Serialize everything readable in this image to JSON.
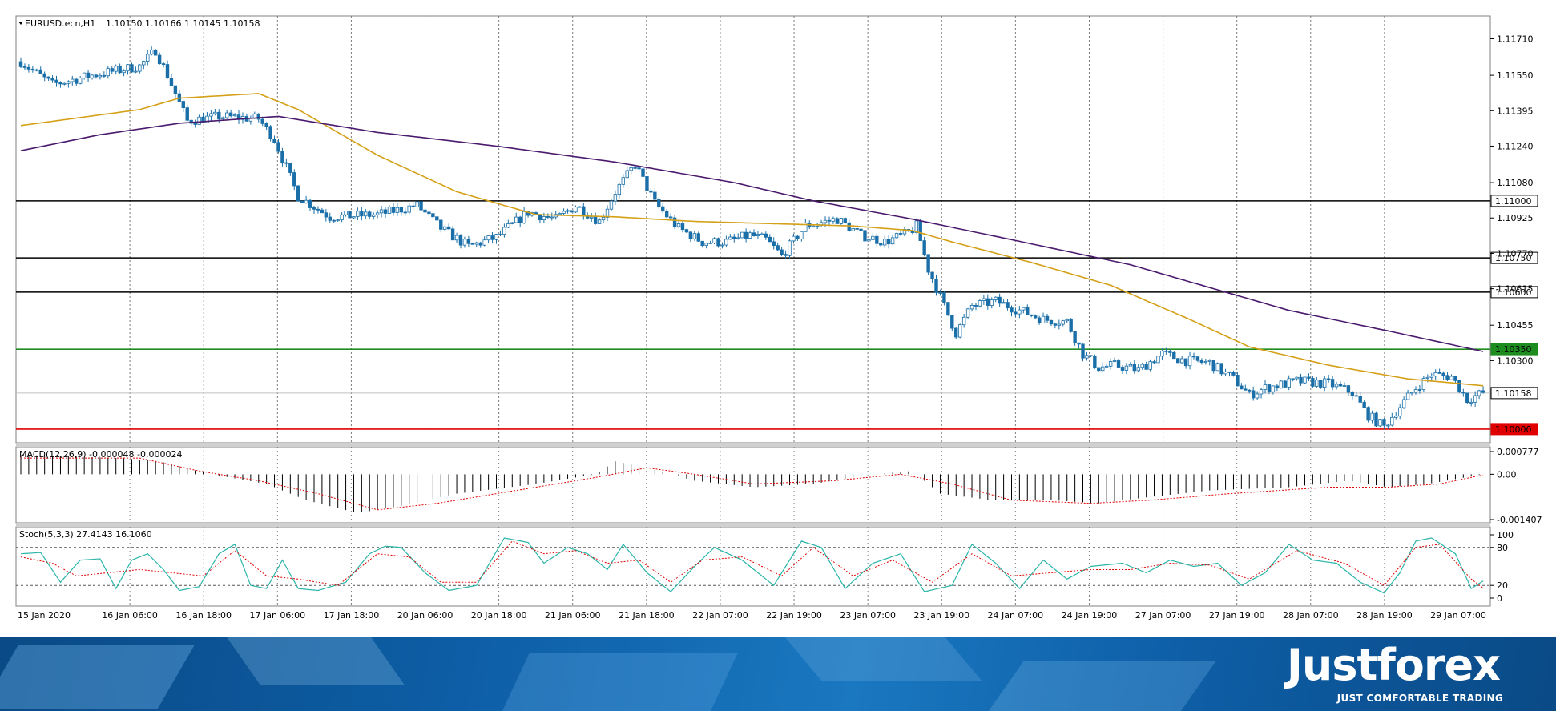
{
  "chart_data": {
    "type": "candlestick",
    "header": {
      "symbol_label": "EURUSD.ecn,H1",
      "ohlc_text": "1.10150 1.10166 1.10145 1.10158"
    },
    "price_axis": {
      "ylim": [
        1.0994,
        1.1181
      ],
      "tick_labels": [
        "1.11710",
        "1.11550",
        "1.11395",
        "1.11240",
        "1.11080",
        "1.10925",
        "1.10770",
        "1.10615",
        "1.10455",
        "1.10300"
      ]
    },
    "x_tick_labels": [
      "15 Jan 2020",
      "16 Jan 06:00",
      "16 Jan 18:00",
      "17 Jan 06:00",
      "17 Jan 18:00",
      "20 Jan 06:00",
      "20 Jan 18:00",
      "21 Jan 06:00",
      "21 Jan 18:00",
      "22 Jan 07:00",
      "22 Jan 19:00",
      "23 Jan 07:00",
      "23 Jan 19:00",
      "24 Jan 07:00",
      "24 Jan 19:00",
      "27 Jan 07:00",
      "27 Jan 19:00",
      "28 Jan 07:00",
      "28 Jan 19:00",
      "29 Jan 07:00"
    ],
    "horizontal_levels": [
      {
        "value": 1.11,
        "label": "1.11000",
        "color": "#000000"
      },
      {
        "value": 1.1075,
        "label": "1.10750",
        "color": "#000000"
      },
      {
        "value": 1.106,
        "label": "1.10600",
        "color": "#000000"
      },
      {
        "value": 1.1035,
        "label": "1.10350",
        "color": "#1e8c1e"
      },
      {
        "value": 1.10158,
        "label": "1.10158",
        "color": "#c0c0c0"
      },
      {
        "value": 1.1,
        "label": "1.10000",
        "color": "#e00000"
      }
    ],
    "price_keypoints": [
      [
        0,
        1.1161
      ],
      [
        8,
        1.1151
      ],
      [
        18,
        1.1155
      ],
      [
        30,
        1.1159
      ],
      [
        34,
        1.1166
      ],
      [
        37,
        1.1155
      ],
      [
        42,
        1.1135
      ],
      [
        50,
        1.1137
      ],
      [
        60,
        1.1136
      ],
      [
        64,
        1.1127
      ],
      [
        70,
        1.1102
      ],
      [
        78,
        1.1093
      ],
      [
        90,
        1.1094
      ],
      [
        100,
        1.1098
      ],
      [
        106,
        1.1088
      ],
      [
        113,
        1.108
      ],
      [
        120,
        1.1084
      ],
      [
        128,
        1.1095
      ],
      [
        135,
        1.1092
      ],
      [
        140,
        1.1098
      ],
      [
        146,
        1.1091
      ],
      [
        150,
        1.1104
      ],
      [
        155,
        1.1116
      ],
      [
        160,
        1.1099
      ],
      [
        166,
        1.1088
      ],
      [
        172,
        1.1082
      ],
      [
        178,
        1.1082
      ],
      [
        184,
        1.1085
      ],
      [
        188,
        1.1083
      ],
      [
        192,
        1.1076
      ],
      [
        198,
        1.1089
      ],
      [
        206,
        1.1092
      ],
      [
        212,
        1.1085
      ],
      [
        218,
        1.1082
      ],
      [
        224,
        1.1086
      ],
      [
        226,
        1.1089
      ],
      [
        229,
        1.107
      ],
      [
        232,
        1.1058
      ],
      [
        236,
        1.1042
      ],
      [
        240,
        1.1054
      ],
      [
        246,
        1.1056
      ],
      [
        252,
        1.1052
      ],
      [
        258,
        1.1048
      ],
      [
        264,
        1.1047
      ],
      [
        268,
        1.1033
      ],
      [
        272,
        1.1027
      ],
      [
        276,
        1.1028
      ],
      [
        282,
        1.1026
      ],
      [
        288,
        1.1033
      ],
      [
        294,
        1.103
      ],
      [
        300,
        1.1029
      ],
      [
        306,
        1.1022
      ],
      [
        310,
        1.1015
      ],
      [
        314,
        1.1018
      ],
      [
        322,
        1.1021
      ],
      [
        330,
        1.102
      ],
      [
        336,
        1.1016
      ],
      [
        340,
        1.1006
      ],
      [
        344,
        1.1001
      ],
      [
        348,
        1.101
      ],
      [
        352,
        1.1018
      ],
      [
        356,
        1.1024
      ],
      [
        361,
        1.1023
      ],
      [
        365,
        1.1013
      ],
      [
        369,
        1.1016
      ]
    ],
    "moving_averages": [
      {
        "color": "#d4a017",
        "keypoints": [
          [
            0,
            1.1133
          ],
          [
            30,
            1.114
          ],
          [
            40,
            1.1145
          ],
          [
            60,
            1.1147
          ],
          [
            70,
            1.114
          ],
          [
            90,
            1.112
          ],
          [
            110,
            1.1104
          ],
          [
            130,
            1.1094
          ],
          [
            150,
            1.1093
          ],
          [
            170,
            1.1091
          ],
          [
            190,
            1.109
          ],
          [
            210,
            1.1089
          ],
          [
            225,
            1.1087
          ],
          [
            235,
            1.1082
          ],
          [
            255,
            1.1073
          ],
          [
            275,
            1.1063
          ],
          [
            295,
            1.1048
          ],
          [
            310,
            1.1036
          ],
          [
            330,
            1.1028
          ],
          [
            350,
            1.1022
          ],
          [
            369,
            1.1019
          ]
        ]
      },
      {
        "color": "#4b1a6e",
        "keypoints": [
          [
            0,
            1.1122
          ],
          [
            20,
            1.1129
          ],
          [
            40,
            1.1134
          ],
          [
            65,
            1.1137
          ],
          [
            90,
            1.113
          ],
          [
            120,
            1.1124
          ],
          [
            150,
            1.1117
          ],
          [
            180,
            1.1108
          ],
          [
            200,
            1.11
          ],
          [
            225,
            1.1092
          ],
          [
            250,
            1.1083
          ],
          [
            280,
            1.1072
          ],
          [
            300,
            1.1062
          ],
          [
            320,
            1.1052
          ],
          [
            345,
            1.1043
          ],
          [
            369,
            1.1034
          ]
        ]
      }
    ],
    "macd": {
      "label": "MACD(12,26,9) -0.000048 -0.000024",
      "ylim": [
        -0.0015,
        0.00085
      ],
      "tick_labels": [
        "0.000777",
        "0.00",
        "-0.001407"
      ],
      "histogram_keypoints": [
        [
          0,
          0.0006
        ],
        [
          25,
          0.0005
        ],
        [
          35,
          0.0004
        ],
        [
          48,
          0.0
        ],
        [
          62,
          -0.0003
        ],
        [
          72,
          -0.0008
        ],
        [
          85,
          -0.0012
        ],
        [
          95,
          -0.001
        ],
        [
          110,
          -0.0006
        ],
        [
          130,
          -0.0003
        ],
        [
          145,
          0.0
        ],
        [
          150,
          0.0004
        ],
        [
          158,
          0.0002
        ],
        [
          170,
          -0.0002
        ],
        [
          185,
          -0.0004
        ],
        [
          200,
          -0.0003
        ],
        [
          215,
          0.0
        ],
        [
          225,
          0.0001
        ],
        [
          232,
          -0.0006
        ],
        [
          245,
          -0.0008
        ],
        [
          260,
          -0.0008
        ],
        [
          272,
          -0.0009
        ],
        [
          285,
          -0.0007
        ],
        [
          300,
          -0.0005
        ],
        [
          320,
          -0.0004
        ],
        [
          335,
          -0.0002
        ],
        [
          345,
          -0.0004
        ],
        [
          355,
          -0.0003
        ],
        [
          369,
          0.0
        ]
      ],
      "signal_keypoints": [
        [
          0,
          0.0005
        ],
        [
          30,
          0.0005
        ],
        [
          45,
          0.0001
        ],
        [
          60,
          -0.0002
        ],
        [
          75,
          -0.0006
        ],
        [
          90,
          -0.0011
        ],
        [
          105,
          -0.0009
        ],
        [
          125,
          -0.0005
        ],
        [
          145,
          -0.0001
        ],
        [
          158,
          0.0002
        ],
        [
          170,
          0.0
        ],
        [
          185,
          -0.0003
        ],
        [
          205,
          -0.0002
        ],
        [
          222,
          0.0
        ],
        [
          235,
          -0.0003
        ],
        [
          250,
          -0.0008
        ],
        [
          270,
          -0.0009
        ],
        [
          285,
          -0.0008
        ],
        [
          305,
          -0.0006
        ],
        [
          330,
          -0.0004
        ],
        [
          345,
          -0.0004
        ],
        [
          358,
          -0.0003
        ],
        [
          369,
          -2e-05
        ]
      ],
      "colors": {
        "histogram": "#000000",
        "signal": "#e00000"
      }
    },
    "stochastic": {
      "label": "Stoch(5,3,3) 27.4143 16.1060",
      "ylim": [
        0,
        100
      ],
      "tick_labels": [
        "100",
        "80",
        "20",
        "0"
      ],
      "levels": [
        80,
        20
      ],
      "main_keypoints": [
        [
          0,
          70
        ],
        [
          5,
          72
        ],
        [
          10,
          25
        ],
        [
          15,
          60
        ],
        [
          20,
          62
        ],
        [
          24,
          15
        ],
        [
          28,
          60
        ],
        [
          32,
          70
        ],
        [
          36,
          45
        ],
        [
          40,
          12
        ],
        [
          45,
          18
        ],
        [
          50,
          70
        ],
        [
          54,
          85
        ],
        [
          58,
          20
        ],
        [
          62,
          15
        ],
        [
          66,
          60
        ],
        [
          70,
          15
        ],
        [
          75,
          12
        ],
        [
          82,
          25
        ],
        [
          88,
          70
        ],
        [
          92,
          82
        ],
        [
          96,
          80
        ],
        [
          102,
          40
        ],
        [
          108,
          12
        ],
        [
          115,
          20
        ],
        [
          122,
          95
        ],
        [
          128,
          88
        ],
        [
          132,
          55
        ],
        [
          138,
          80
        ],
        [
          143,
          70
        ],
        [
          148,
          45
        ],
        [
          152,
          85
        ],
        [
          158,
          40
        ],
        [
          164,
          10
        ],
        [
          170,
          50
        ],
        [
          175,
          80
        ],
        [
          182,
          60
        ],
        [
          190,
          20
        ],
        [
          197,
          90
        ],
        [
          202,
          80
        ],
        [
          208,
          15
        ],
        [
          215,
          55
        ],
        [
          222,
          70
        ],
        [
          228,
          10
        ],
        [
          235,
          20
        ],
        [
          240,
          85
        ],
        [
          246,
          55
        ],
        [
          252,
          15
        ],
        [
          258,
          60
        ],
        [
          264,
          30
        ],
        [
          270,
          50
        ],
        [
          278,
          55
        ],
        [
          284,
          40
        ],
        [
          290,
          60
        ],
        [
          296,
          50
        ],
        [
          302,
          55
        ],
        [
          308,
          20
        ],
        [
          314,
          40
        ],
        [
          320,
          85
        ],
        [
          326,
          60
        ],
        [
          332,
          55
        ],
        [
          338,
          25
        ],
        [
          344,
          8
        ],
        [
          348,
          40
        ],
        [
          352,
          90
        ],
        [
          356,
          95
        ],
        [
          362,
          70
        ],
        [
          366,
          15
        ],
        [
          369,
          27
        ]
      ],
      "signal_keypoints": [
        [
          0,
          65
        ],
        [
          8,
          55
        ],
        [
          14,
          35
        ],
        [
          22,
          40
        ],
        [
          30,
          45
        ],
        [
          38,
          40
        ],
        [
          46,
          35
        ],
        [
          54,
          75
        ],
        [
          62,
          35
        ],
        [
          70,
          30
        ],
        [
          80,
          20
        ],
        [
          90,
          70
        ],
        [
          98,
          65
        ],
        [
          106,
          25
        ],
        [
          115,
          25
        ],
        [
          124,
          90
        ],
        [
          132,
          70
        ],
        [
          140,
          75
        ],
        [
          148,
          55
        ],
        [
          156,
          60
        ],
        [
          164,
          25
        ],
        [
          172,
          60
        ],
        [
          182,
          65
        ],
        [
          192,
          35
        ],
        [
          200,
          80
        ],
        [
          210,
          35
        ],
        [
          220,
          60
        ],
        [
          230,
          25
        ],
        [
          240,
          70
        ],
        [
          250,
          35
        ],
        [
          260,
          40
        ],
        [
          270,
          45
        ],
        [
          280,
          45
        ],
        [
          290,
          55
        ],
        [
          300,
          52
        ],
        [
          310,
          30
        ],
        [
          322,
          75
        ],
        [
          334,
          55
        ],
        [
          344,
          20
        ],
        [
          352,
          80
        ],
        [
          358,
          85
        ],
        [
          366,
          30
        ],
        [
          369,
          16
        ]
      ],
      "colors": {
        "main": "#2ab5a8",
        "signal": "#e00000"
      }
    }
  },
  "footer": {
    "brand": "Justforex",
    "slogan": "JUST COMFORTABLE TRADING"
  }
}
